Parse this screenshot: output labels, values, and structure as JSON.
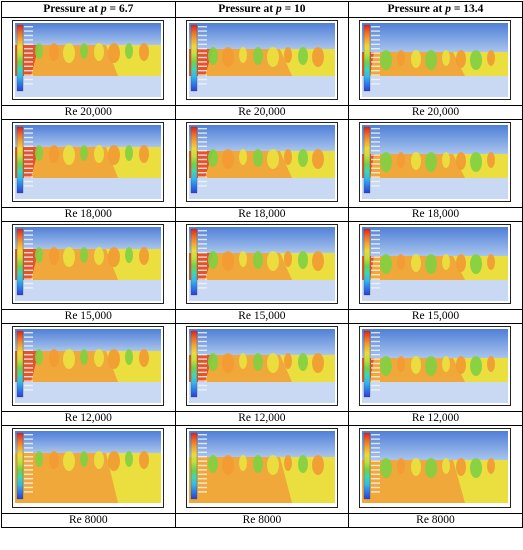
{
  "headers": [
    {
      "prefix": "Pressure at ",
      "var": "p",
      "suffix": " = 6.7"
    },
    {
      "prefix": "Pressure at ",
      "var": "p",
      "suffix": " = 10"
    },
    {
      "prefix": "Pressure at ",
      "var": "p",
      "suffix": " = 13.4"
    }
  ],
  "rows": [
    {
      "labels": [
        "Re 20,000",
        "Re 20,000",
        "Re 20,000"
      ]
    },
    {
      "labels": [
        "Re 18,000",
        "Re 18,000",
        "Re 18,000"
      ]
    },
    {
      "labels": [
        "Re 15,000",
        "Re 15,000",
        "Re 15,000"
      ]
    },
    {
      "labels": [
        "Re 12,000",
        "Re 12,000",
        "Re 12,000"
      ]
    },
    {
      "labels": [
        "Re 8000",
        "Re 8000",
        "Re 8000"
      ]
    }
  ],
  "colors": {
    "sky_top": "#4f7fd6",
    "sky_bottom": "#a9c5ee",
    "bottom_band": "#c9d9f3",
    "field_orange": "#f0a83a",
    "field_yellow": "#e9e23e",
    "field_green": "#7fd043",
    "field_red": "#e2452a"
  }
}
